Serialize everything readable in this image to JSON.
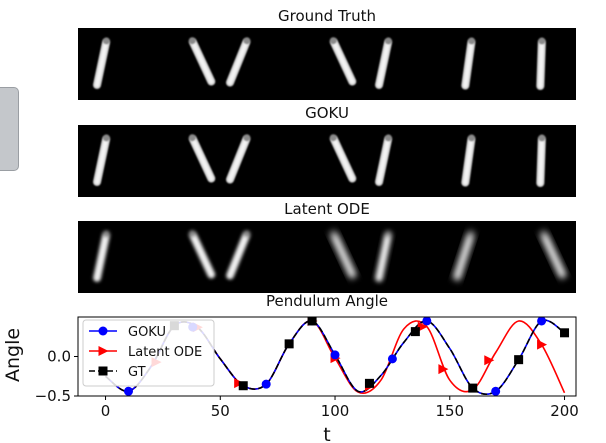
{
  "panels": [
    {
      "title": "Ground Truth",
      "angles": [
        12,
        -25,
        22,
        -25,
        12,
        8,
        2
      ],
      "blur": [
        0,
        0,
        0,
        0,
        0,
        0,
        0
      ]
    },
    {
      "title": "GOKU",
      "angles": [
        12,
        -25,
        22,
        -25,
        12,
        8,
        2
      ],
      "blur": [
        0,
        0,
        0,
        0,
        0,
        0,
        0
      ]
    },
    {
      "title": "Latent ODE",
      "angles": [
        12,
        -25,
        22,
        -25,
        12,
        18,
        -25
      ],
      "blur": [
        1,
        1,
        1,
        3,
        2,
        3,
        3
      ]
    }
  ],
  "chart_data": {
    "type": "line",
    "title": "Pendulum Angle",
    "xlabel": "t",
    "ylabel": "Angle",
    "xlim": [
      -12,
      205
    ],
    "ylim": [
      -0.5,
      0.5
    ],
    "xticks": [
      0,
      50,
      100,
      150,
      200
    ],
    "yticks": [
      0.0,
      -0.5
    ],
    "ytick_labels": [
      "0.0",
      "−0.5"
    ],
    "legend_position": "upper-left",
    "series": [
      {
        "name": "GOKU",
        "color": "#0000ff",
        "marker": "circle",
        "x": [
          0,
          10,
          20,
          30,
          40,
          50,
          60,
          70,
          80,
          90,
          100,
          110,
          120,
          130,
          140,
          150,
          160,
          170,
          180,
          190,
          200
        ],
        "y": [
          -0.25,
          -0.44,
          -0.12,
          0.39,
          0.37,
          -0.03,
          -0.37,
          -0.35,
          0.16,
          0.45,
          0.02,
          -0.44,
          -0.24,
          0.18,
          0.45,
          0.1,
          -0.4,
          -0.44,
          -0.04,
          0.45,
          0.3
        ]
      },
      {
        "name": "Latent ODE",
        "color": "#ff0000",
        "marker": "triangle-right",
        "x": [
          0,
          10,
          20,
          30,
          40,
          50,
          60,
          70,
          80,
          90,
          100,
          110,
          120,
          130,
          140,
          150,
          160,
          170,
          180,
          190,
          200
        ],
        "y": [
          -0.25,
          -0.44,
          -0.12,
          0.39,
          0.37,
          -0.03,
          -0.37,
          -0.35,
          0.16,
          0.45,
          -0.02,
          -0.45,
          -0.3,
          0.35,
          0.38,
          -0.3,
          -0.42,
          0.05,
          0.45,
          0.15,
          -0.46
        ]
      },
      {
        "name": "GT",
        "color": "#000000",
        "marker": "square",
        "dashed": true,
        "x": [
          0,
          10,
          20,
          30,
          40,
          50,
          60,
          70,
          80,
          90,
          100,
          110,
          120,
          130,
          140,
          150,
          160,
          170,
          180,
          190,
          200
        ],
        "y": [
          -0.25,
          -0.44,
          -0.12,
          0.39,
          0.37,
          -0.03,
          -0.37,
          -0.35,
          0.16,
          0.45,
          0.02,
          -0.44,
          -0.24,
          0.18,
          0.45,
          0.1,
          -0.4,
          -0.44,
          -0.04,
          0.45,
          0.3
        ]
      }
    ],
    "marker_x": {
      "GOKU": [
        10,
        38,
        70,
        90,
        100,
        125,
        140,
        170,
        190
      ],
      "Latent ODE": [
        22,
        40,
        58,
        90,
        100,
        115,
        138,
        147,
        167,
        190
      ],
      "GT": [
        30,
        60,
        80,
        90,
        115,
        135,
        160,
        180,
        200
      ]
    }
  }
}
